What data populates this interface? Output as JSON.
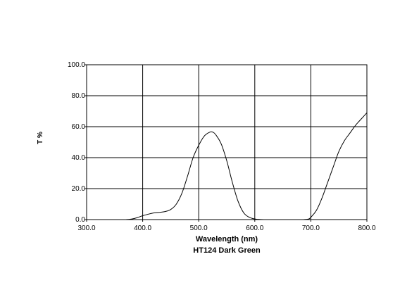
{
  "chart_data": {
    "type": "line",
    "title": "HT124 Dark Green",
    "xlabel": "Wavelength (nm)",
    "ylabel": "T %",
    "xlim": [
      300,
      800
    ],
    "ylim": [
      0,
      100
    ],
    "x_ticks": [
      "300.0",
      "400.0",
      "500.0",
      "600.0",
      "700.0",
      "800.0"
    ],
    "y_ticks": [
      "0.0",
      "20.0",
      "40.0",
      "60.0",
      "80.0",
      "100.0"
    ],
    "grid": true,
    "legend": "none",
    "line_color": "#000000",
    "series": [
      {
        "x": [
          370,
          380,
          390,
          400,
          410,
          420,
          430,
          440,
          450,
          460,
          470,
          480,
          490,
          500,
          510,
          520,
          525,
          530,
          540,
          550,
          560,
          570,
          580,
          590,
          600,
          610,
          620,
          650,
          680,
          695,
          700,
          710,
          720,
          730,
          740,
          750,
          760,
          770,
          780,
          790,
          800
        ],
        "y": [
          0,
          0.3,
          1.2,
          2.5,
          3.5,
          4.3,
          4.7,
          5.2,
          6.5,
          10,
          17,
          28,
          40,
          48,
          54,
          56.5,
          56.5,
          55,
          49,
          38,
          24,
          12,
          4.5,
          1.5,
          0.4,
          0.1,
          0,
          0,
          0,
          0.3,
          1.5,
          6,
          14,
          24,
          34,
          44,
          51,
          56,
          61,
          65,
          69
        ]
      }
    ]
  }
}
